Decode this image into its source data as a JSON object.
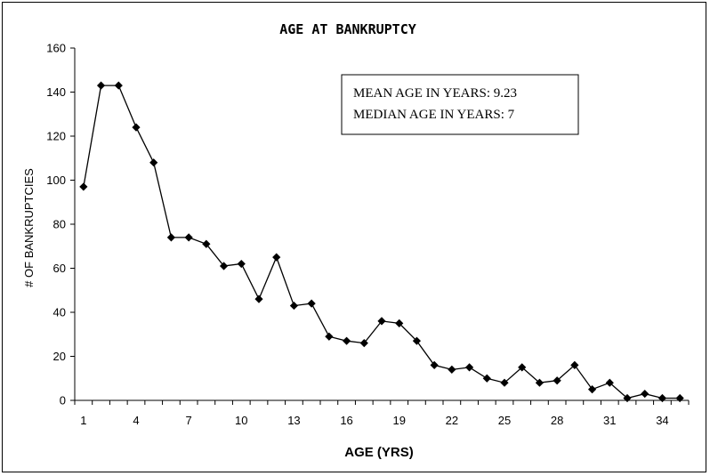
{
  "chart_data": {
    "type": "line",
    "title": "AGE AT BANKRUPTCY",
    "xlabel": "AGE (YRS)",
    "ylabel": "# OF BANKRUPTCIES",
    "x": [
      1,
      2,
      3,
      4,
      5,
      6,
      7,
      8,
      9,
      10,
      11,
      12,
      13,
      14,
      15,
      16,
      17,
      18,
      19,
      20,
      21,
      22,
      23,
      24,
      25,
      26,
      27,
      28,
      29,
      30,
      31,
      32,
      33,
      34,
      35
    ],
    "x_tick_labels": [
      "1",
      "4",
      "7",
      "10",
      "13",
      "16",
      "19",
      "22",
      "25",
      "28",
      "31",
      "34"
    ],
    "y_tick_labels": [
      "0",
      "20",
      "40",
      "60",
      "80",
      "100",
      "120",
      "140",
      "160"
    ],
    "ylim": [
      0,
      160
    ],
    "grid": false,
    "marker": "diamond",
    "color": "#000000",
    "series": [
      {
        "values": [
          97,
          143,
          143,
          124,
          108,
          74,
          74,
          71,
          61,
          62,
          46,
          65,
          43,
          44,
          29,
          27,
          26,
          36,
          35,
          27,
          16,
          14,
          15,
          10,
          8,
          15,
          8,
          9,
          16,
          5,
          8,
          1,
          3,
          1,
          1
        ]
      }
    ],
    "annotations": {
      "mean": "MEAN AGE IN YEARS:  9.23",
      "median": "MEDIAN AGE IN YEARS: 7"
    }
  }
}
